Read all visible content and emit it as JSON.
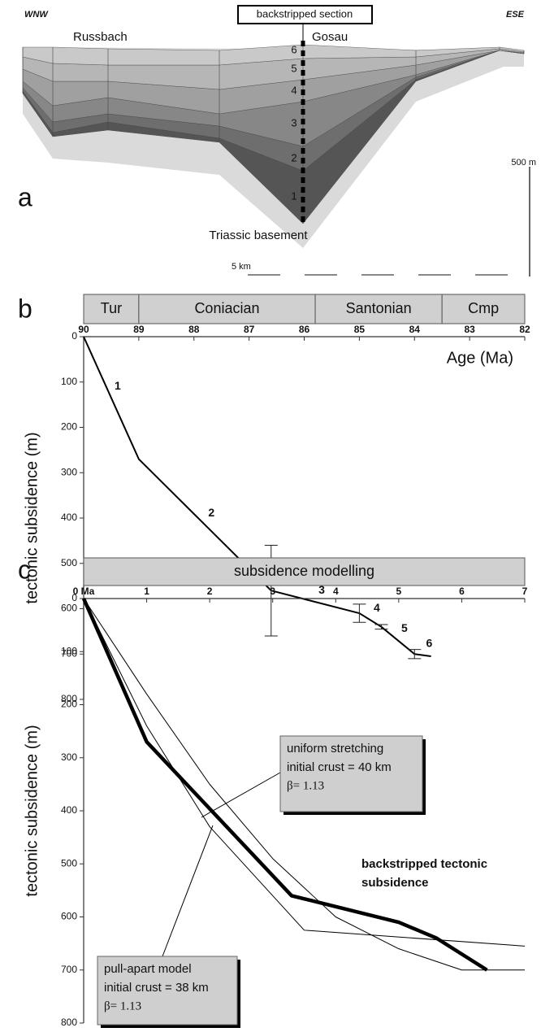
{
  "section": {
    "panel": "a",
    "left_label": "WNW",
    "right_label": "ESE",
    "section_label": "backstripped section",
    "localities": [
      "Russbach",
      "Gosau"
    ],
    "layers": [
      "1",
      "2",
      "3",
      "4",
      "5",
      "6"
    ],
    "basement": "Triassic basement",
    "vertical_scale": "500 m",
    "horizontal_scale": "5 km"
  },
  "chart_data": [
    {
      "type": "line",
      "panel": "b",
      "x_label": "Age (Ma)",
      "y_label": "tectonic subsidence (m)",
      "stages": [
        {
          "name": "Tur",
          "start": 90,
          "end": 89
        },
        {
          "name": "Coniacian",
          "start": 89,
          "end": 85.8
        },
        {
          "name": "Santonian",
          "start": 85.8,
          "end": 83.5
        },
        {
          "name": "Cmp",
          "start": 83.5,
          "end": 82
        }
      ],
      "xlim": [
        90,
        82
      ],
      "xticks": [
        90,
        89,
        88,
        87,
        86,
        85,
        84,
        83,
        82
      ],
      "ylim": [
        0,
        800
      ],
      "yticks": [
        0,
        100,
        200,
        300,
        400,
        500,
        600,
        700,
        800
      ],
      "y_reversed": true,
      "series": [
        {
          "color": "#000000",
          "width": 2,
          "x": [
            90,
            89,
            86.6,
            85,
            84.6,
            84,
            83.7
          ],
          "values": [
            0,
            270,
            560,
            610,
            640,
            700,
            705
          ],
          "errors": [
            null,
            null,
            100,
            20,
            5,
            10,
            null
          ]
        }
      ],
      "segment_labels": [
        "1",
        "2",
        "3",
        "4",
        "5",
        "6"
      ]
    },
    {
      "type": "line",
      "panel": "c",
      "title": "subsidence modelling",
      "y_label": "tectonic subsidence (m)",
      "xlim": [
        0,
        7
      ],
      "xticks": [
        {
          "value": 0,
          "label": "0 Ma"
        },
        1,
        2,
        3,
        4,
        5,
        6,
        7
      ],
      "ylim": [
        0,
        800
      ],
      "yticks": [
        0,
        100,
        200,
        300,
        400,
        500,
        600,
        700,
        800
      ],
      "y_reversed": true,
      "series": [
        {
          "color": "#000000",
          "width": 1,
          "x": [
            0,
            1,
            2,
            3,
            4,
            5,
            6,
            7
          ],
          "values": [
            0,
            180,
            350,
            490,
            600,
            660,
            700,
            700
          ]
        },
        {
          "color": "#000000",
          "width": 1,
          "x": [
            0,
            1,
            2,
            3.5,
            7
          ],
          "values": [
            0,
            240,
            430,
            625,
            655
          ]
        },
        {
          "color": "#000000",
          "width": 4.5,
          "x": [
            0,
            1,
            3.3,
            5,
            5.6,
            6.4
          ],
          "values": [
            0,
            270,
            560,
            610,
            640,
            700
          ]
        }
      ],
      "annotations": [
        {
          "lines": [
            "uniform stretching",
            "initial crust = 40 km",
            "β= 1.13"
          ]
        },
        {
          "lines": [
            "pull-apart model",
            "initial crust = 38 km",
            "β= 1.13"
          ]
        },
        {
          "lines": [
            "backstripped tectonic",
            "subsidence"
          ]
        }
      ]
    }
  ]
}
